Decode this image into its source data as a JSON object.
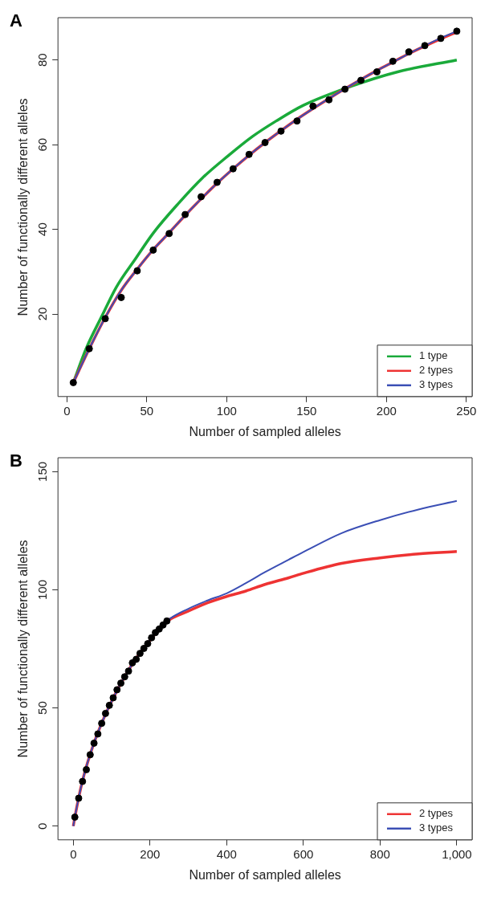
{
  "chart_data": [
    {
      "type": "line",
      "title": "A",
      "xlabel": "Number of sampled alleles",
      "ylabel": "Number of functionally different alleles",
      "xlim": [
        -5.6,
        253.6
      ],
      "ylim": [
        0.5,
        90
      ],
      "xticks": [
        0,
        50,
        100,
        150,
        200,
        250
      ],
      "yticks": [
        20,
        40,
        60,
        80
      ],
      "grid": false,
      "legend": "bottom right",
      "line_style": "solid",
      "series": [
        {
          "type": "scatter",
          "color": "#000000",
          "marker": "circle",
          "x": [
            4,
            14,
            24,
            34,
            44,
            54,
            64,
            74,
            84,
            94,
            104,
            114,
            124,
            134,
            144,
            154,
            164,
            174,
            184,
            194,
            204,
            214,
            224,
            234,
            244
          ],
          "values": [
            3.8,
            11.8,
            18.9,
            23.9,
            30.2,
            35.1,
            39.0,
            43.5,
            47.7,
            51.1,
            54.3,
            57.7,
            60.5,
            63.2,
            65.6,
            69.1,
            70.6,
            73.1,
            75.2,
            77.2,
            79.7,
            81.9,
            83.4,
            85.1,
            86.8
          ]
        },
        {
          "name": "1 type",
          "color": "#1aaa3a",
          "x": [
            4,
            12,
            22,
            31,
            43,
            54,
            70,
            85,
            101,
            116,
            131,
            148,
            178,
            207,
            244
          ],
          "values": [
            3.8,
            11.8,
            19.6,
            26.4,
            33.1,
            39.1,
            46.2,
            52.2,
            57.4,
            61.9,
            65.6,
            69.3,
            73.8,
            77.2,
            80.0
          ]
        },
        {
          "name": "2 types",
          "color": "#ee3333",
          "x": [
            4,
            14,
            24,
            34,
            44,
            54,
            64,
            74,
            84,
            94,
            104,
            114,
            124,
            134,
            144,
            154,
            164,
            174,
            184,
            194,
            204,
            214,
            224,
            234,
            244
          ],
          "values": [
            3.8,
            11.8,
            19.2,
            25.6,
            30.6,
            35.2,
            39.2,
            43.3,
            47.2,
            50.9,
            54.3,
            57.5,
            60.5,
            63.3,
            66.0,
            68.5,
            70.9,
            73.2,
            75.4,
            77.5,
            79.5,
            81.5,
            83.3,
            85.0,
            86.6
          ]
        },
        {
          "name": "3 types",
          "color": "#3b4fb5",
          "x": [
            4,
            14,
            24,
            34,
            44,
            54,
            64,
            74,
            84,
            94,
            104,
            114,
            124,
            134,
            144,
            154,
            164,
            174,
            184,
            194,
            204,
            214,
            224,
            234,
            244
          ],
          "values": [
            3.8,
            11.8,
            19.2,
            25.6,
            30.6,
            35.2,
            39.2,
            43.3,
            47.2,
            50.9,
            54.3,
            57.5,
            60.5,
            63.3,
            66.0,
            68.5,
            70.9,
            73.2,
            75.4,
            77.5,
            79.5,
            81.5,
            83.4,
            85.2,
            86.8
          ]
        }
      ]
    },
    {
      "type": "line",
      "title": "B",
      "xlabel": "Number of sampled alleles",
      "ylabel": "Number of functionally different alleles",
      "xlim": [
        -40,
        1040
      ],
      "ylim": [
        -5.8,
        155.9
      ],
      "xticks": [
        0,
        200,
        400,
        600,
        800,
        {
          "value": 1000,
          "label": "1,000"
        }
      ],
      "yticks": [
        0,
        50,
        100,
        150
      ],
      "grid": false,
      "legend": "bottom right",
      "line_style": "solid",
      "series": [
        {
          "type": "scatter",
          "color": "#000000",
          "marker": "circle",
          "x": [
            4,
            14,
            24,
            34,
            44,
            54,
            64,
            74,
            84,
            94,
            104,
            114,
            124,
            134,
            144,
            154,
            164,
            174,
            184,
            194,
            204,
            214,
            224,
            234,
            244
          ],
          "values": [
            3.8,
            11.8,
            18.9,
            23.9,
            30.2,
            35.1,
            39.0,
            43.5,
            47.7,
            51.1,
            54.3,
            57.7,
            60.5,
            63.2,
            65.6,
            69.1,
            70.6,
            73.1,
            75.2,
            77.2,
            79.7,
            81.9,
            83.4,
            85.1,
            86.8
          ]
        },
        {
          "name": "2 types",
          "color": "#ee3333",
          "x": [
            0,
            4,
            24,
            54,
            94,
            144,
            194,
            244,
            300,
            350,
            400,
            450,
            500,
            562,
            600,
            700,
            800,
            900,
            1000
          ],
          "values": [
            0,
            3.8,
            19.2,
            35.2,
            50.9,
            66.0,
            77.5,
            86.6,
            91.0,
            94.5,
            97.2,
            99.5,
            102.3,
            105.1,
            107.0,
            111.2,
            113.5,
            115.2,
            116.2
          ]
        },
        {
          "name": "3 types",
          "color": "#3b4fb5",
          "x": [
            0,
            4,
            24,
            54,
            94,
            144,
            194,
            244,
            300,
            350,
            400,
            450,
            500,
            562,
            600,
            700,
            800,
            900,
            1000
          ],
          "values": [
            0,
            3.8,
            19.2,
            35.2,
            50.9,
            66.0,
            77.5,
            86.8,
            92.0,
            95.5,
            98.5,
            102.8,
            107.5,
            112.8,
            116.0,
            124.0,
            129.5,
            134.0,
            137.6
          ]
        }
      ]
    }
  ]
}
